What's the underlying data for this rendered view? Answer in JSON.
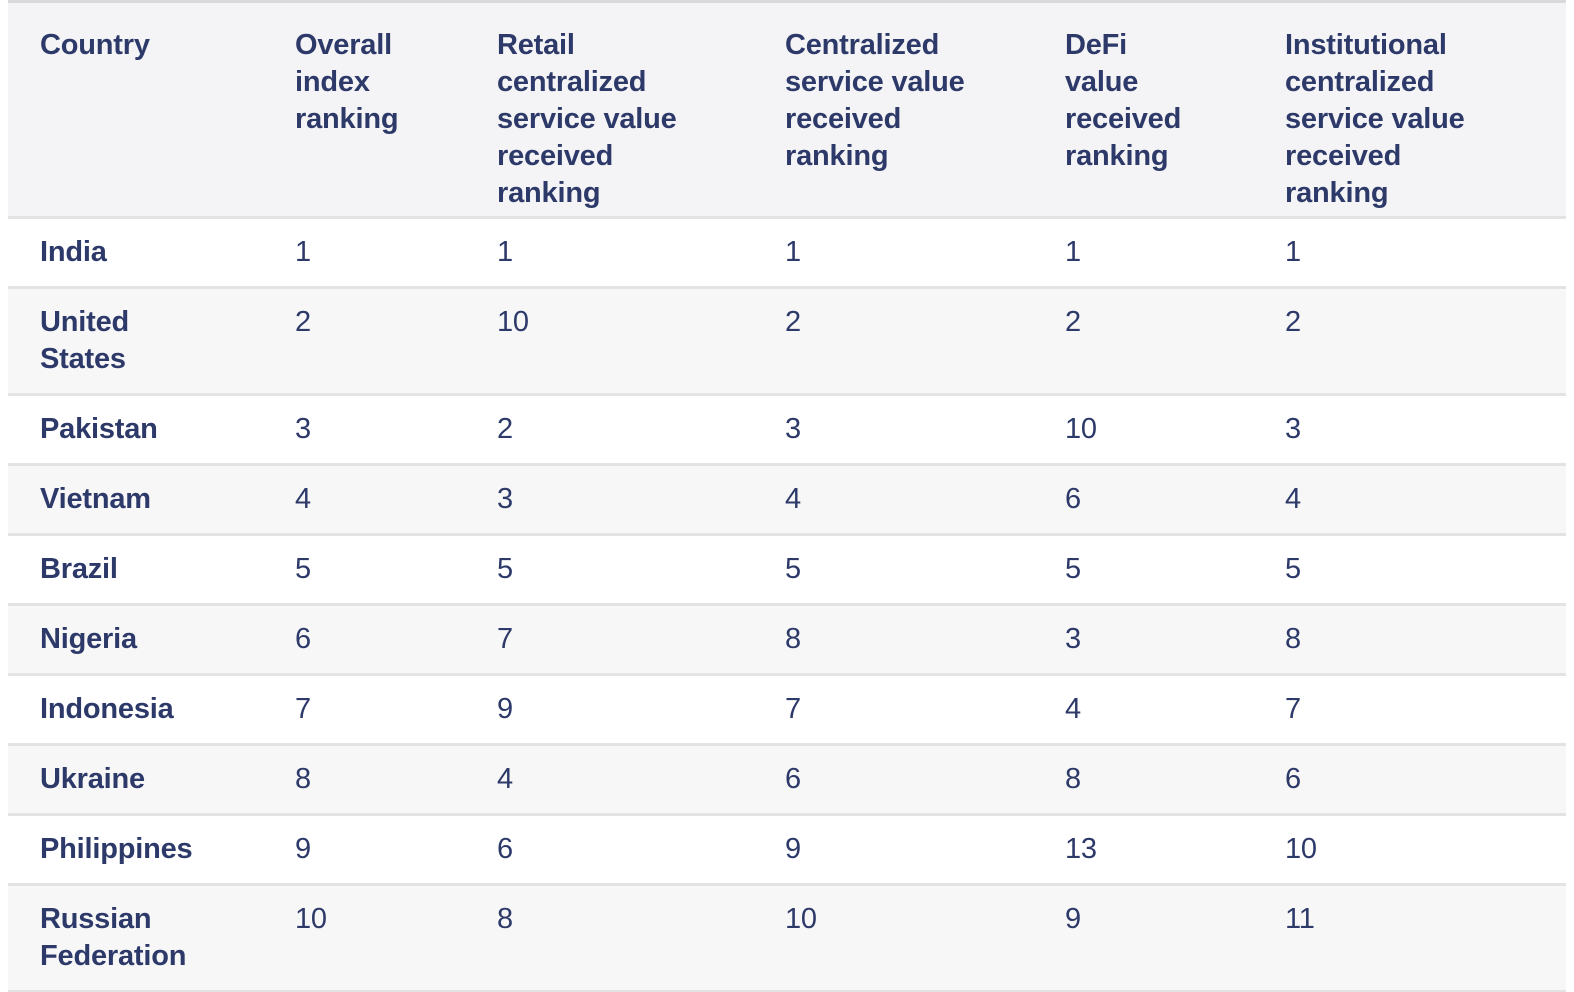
{
  "colors": {
    "text_navy": "#2d3a69",
    "header_bg": "#f4f4f6",
    "stripe_bg": "#f7f7f8",
    "row_bg": "#ffffff",
    "divider": "#e3e3e5",
    "top_border": "#d9dadc"
  },
  "chart_data": {
    "type": "table",
    "columns": [
      "Country",
      "Overall index ranking",
      "Retail centralized service value received ranking",
      "Centralized service value received ranking",
      "DeFi value received ranking",
      "Institutional centralized service value received ranking"
    ],
    "rows": [
      [
        "India",
        1,
        1,
        1,
        1,
        1
      ],
      [
        "United States",
        2,
        10,
        2,
        2,
        2
      ],
      [
        "Pakistan",
        3,
        2,
        3,
        10,
        3
      ],
      [
        "Vietnam",
        4,
        3,
        4,
        6,
        4
      ],
      [
        "Brazil",
        5,
        5,
        5,
        5,
        5
      ],
      [
        "Nigeria",
        6,
        7,
        8,
        3,
        8
      ],
      [
        "Indonesia",
        7,
        9,
        7,
        4,
        7
      ],
      [
        "Ukraine",
        8,
        4,
        6,
        8,
        6
      ],
      [
        "Philippines",
        9,
        6,
        9,
        13,
        10
      ],
      [
        "Russian Federation",
        10,
        8,
        10,
        9,
        11
      ]
    ]
  },
  "display": {
    "headers": [
      "Country",
      "Overall\nindex\nranking",
      "Retail\ncentralized\nservice value\nreceived\nranking",
      "Centralized\nservice value\nreceived\nranking",
      "DeFi\nvalue\nreceived\nranking",
      "Institutional\ncentralized\nservice value\nreceived\nranking"
    ],
    "rows": [
      {
        "country": "India",
        "values": [
          "1",
          "1",
          "1",
          "1",
          "1"
        ]
      },
      {
        "country": "United\nStates",
        "values": [
          "2",
          "10",
          "2",
          "2",
          "2"
        ]
      },
      {
        "country": "Pakistan",
        "values": [
          "3",
          "2",
          "3",
          "10",
          "3"
        ]
      },
      {
        "country": "Vietnam",
        "values": [
          "4",
          "3",
          "4",
          "6",
          "4"
        ]
      },
      {
        "country": "Brazil",
        "values": [
          "5",
          "5",
          "5",
          "5",
          "5"
        ]
      },
      {
        "country": "Nigeria",
        "values": [
          "6",
          "7",
          "8",
          "3",
          "8"
        ]
      },
      {
        "country": "Indonesia",
        "values": [
          "7",
          "9",
          "7",
          "4",
          "7"
        ]
      },
      {
        "country": "Ukraine",
        "values": [
          "8",
          "4",
          "6",
          "8",
          "6"
        ]
      },
      {
        "country": "Philippines",
        "values": [
          "9",
          "6",
          "9",
          "13",
          "10"
        ]
      },
      {
        "country": "Russian\nFederation",
        "values": [
          "10",
          "8",
          "10",
          "9",
          "11"
        ]
      }
    ]
  }
}
